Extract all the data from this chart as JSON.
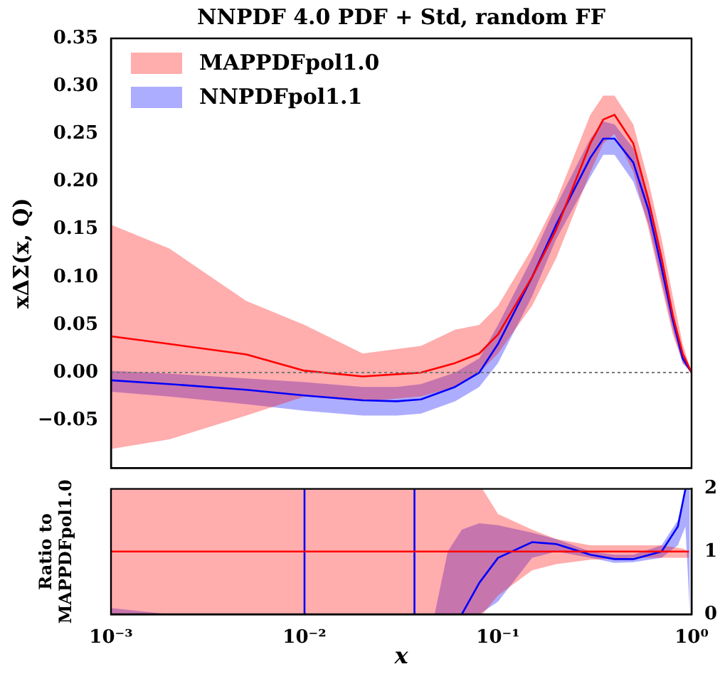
{
  "chart_data": [
    {
      "type": "line",
      "title": "NNPDF 4.0 PDF + Std, random FF",
      "ylabel": "xΔΣ(x, Q)",
      "log": "x",
      "xlim": [
        0.001,
        1
      ],
      "ylim": [
        -0.1,
        0.35
      ],
      "yticks": [
        {
          "value": -0.05,
          "label": "−0.05"
        },
        {
          "value": 0,
          "label": "0.00"
        },
        {
          "value": 0.05,
          "label": "0.05"
        },
        {
          "value": 0.1,
          "label": "0.10"
        },
        {
          "value": 0.15,
          "label": "0.15"
        },
        {
          "value": 0.2,
          "label": "0.20"
        },
        {
          "value": 0.25,
          "label": "0.25"
        },
        {
          "value": 0.3,
          "label": "0.30"
        },
        {
          "value": 0.35,
          "label": "0.35"
        }
      ],
      "tick_labels": "y",
      "legend": "top left",
      "marker": "none",
      "ref_lines": [
        {
          "axis": "y",
          "value": 0,
          "color": "#777777",
          "line_style": "dotted"
        }
      ],
      "series": [
        {
          "name": "MAPPDFpol1.0",
          "color": "#ff0000",
          "x": [
            0.001,
            0.002,
            0.005,
            0.01,
            0.02,
            0.04,
            0.06,
            0.08,
            0.1,
            0.15,
            0.2,
            0.3,
            0.35,
            0.4,
            0.5,
            0.6,
            0.7,
            0.8,
            0.9,
            1.0
          ],
          "values": [
            0.038,
            0.03,
            0.019,
            0.002,
            -0.004,
            0.0,
            0.01,
            0.02,
            0.04,
            0.1,
            0.15,
            0.24,
            0.265,
            0.27,
            0.24,
            0.18,
            0.12,
            0.06,
            0.02,
            0.0
          ],
          "lower": [
            -0.08,
            -0.07,
            -0.045,
            -0.025,
            -0.03,
            -0.025,
            -0.015,
            0.0,
            0.02,
            0.07,
            0.12,
            0.21,
            0.24,
            0.25,
            0.21,
            0.15,
            0.09,
            0.04,
            0.01,
            0.0
          ],
          "upper": [
            0.155,
            0.13,
            0.075,
            0.05,
            0.02,
            0.028,
            0.045,
            0.05,
            0.07,
            0.13,
            0.18,
            0.27,
            0.29,
            0.29,
            0.26,
            0.2,
            0.14,
            0.08,
            0.03,
            0.0
          ]
        },
        {
          "name": "NNPDFpol1.1",
          "color": "#0000ff",
          "x": [
            0.001,
            0.002,
            0.005,
            0.01,
            0.02,
            0.03,
            0.04,
            0.06,
            0.08,
            0.1,
            0.15,
            0.2,
            0.3,
            0.35,
            0.4,
            0.5,
            0.6,
            0.7,
            0.8,
            0.9,
            1.0
          ],
          "values": [
            -0.008,
            -0.012,
            -0.018,
            -0.024,
            -0.029,
            -0.03,
            -0.028,
            -0.015,
            0.0,
            0.03,
            0.1,
            0.155,
            0.225,
            0.245,
            0.245,
            0.22,
            0.17,
            0.11,
            0.055,
            0.015,
            0.0
          ],
          "lower": [
            -0.02,
            -0.025,
            -0.033,
            -0.04,
            -0.045,
            -0.045,
            -0.043,
            -0.03,
            -0.015,
            0.01,
            0.08,
            0.14,
            0.205,
            0.228,
            0.228,
            0.2,
            0.155,
            0.095,
            0.045,
            0.01,
            0.0
          ],
          "upper": [
            0.002,
            -0.001,
            -0.006,
            -0.01,
            -0.015,
            -0.015,
            -0.012,
            0.0,
            0.015,
            0.05,
            0.12,
            0.175,
            0.245,
            0.263,
            0.26,
            0.235,
            0.185,
            0.125,
            0.065,
            0.02,
            0.0
          ]
        }
      ]
    },
    {
      "type": "line",
      "xlabel": "x",
      "ylabel": "Ratio to\nMAPPDFpol1.0",
      "log": "x",
      "xlim": [
        0.001,
        1
      ],
      "xticks": [
        {
          "value": 0.001,
          "label": "10⁻³"
        },
        {
          "value": 0.01,
          "label": "10⁻²"
        },
        {
          "value": 0.1,
          "label": "10⁻¹"
        },
        {
          "value": 1,
          "label": "10⁰"
        }
      ],
      "y2lim": [
        0,
        2
      ],
      "y2ticks": [
        0,
        1,
        2
      ],
      "marker": "none",
      "series": [
        {
          "color": "#ff0000",
          "axis": "y2",
          "x": [
            0.001,
            0.01,
            0.05,
            0.083,
            0.1,
            0.15,
            0.2,
            0.3,
            0.5,
            0.7,
            0.9,
            0.97
          ],
          "values": [
            1,
            1,
            1,
            1,
            1,
            1,
            1,
            1,
            1,
            1,
            1,
            1
          ],
          "lower": [
            0,
            0,
            0,
            0,
            0.3,
            0.7,
            0.8,
            0.87,
            0.9,
            0.9,
            0.9,
            0.9
          ],
          "upper": [
            2,
            2,
            2,
            2,
            1.6,
            1.35,
            1.2,
            1.1,
            1.1,
            1.1,
            1.05,
            1.0
          ]
        },
        {
          "color": "#0000ff",
          "axis": "y2",
          "x": [
            0.001,
            0.002,
            0.01,
            0.01,
            0.02,
            0.037,
            0.037,
            0.047,
            0.055,
            0.065,
            0.08,
            0.1,
            0.15,
            0.2,
            0.3,
            0.4,
            0.5,
            0.7,
            0.85,
            0.93,
            0.98
          ],
          "values": [
            null,
            null,
            0,
            2,
            null,
            2,
            0,
            null,
            null,
            0,
            0.5,
            0.9,
            1.15,
            1.12,
            0.95,
            0.88,
            0.88,
            1.0,
            1.4,
            2.0,
            null
          ],
          "lower": [
            0,
            0,
            null,
            null,
            null,
            null,
            null,
            0,
            0,
            0,
            0,
            0.2,
            0.9,
            1.0,
            0.9,
            0.82,
            0.83,
            0.9,
            1.1,
            1.4,
            0
          ],
          "upper": [
            0.1,
            0,
            null,
            null,
            null,
            null,
            null,
            0,
            1.0,
            1.35,
            1.45,
            1.42,
            1.3,
            1.2,
            1.0,
            0.95,
            0.95,
            1.1,
            1.5,
            2.0,
            2.0
          ]
        }
      ]
    }
  ]
}
